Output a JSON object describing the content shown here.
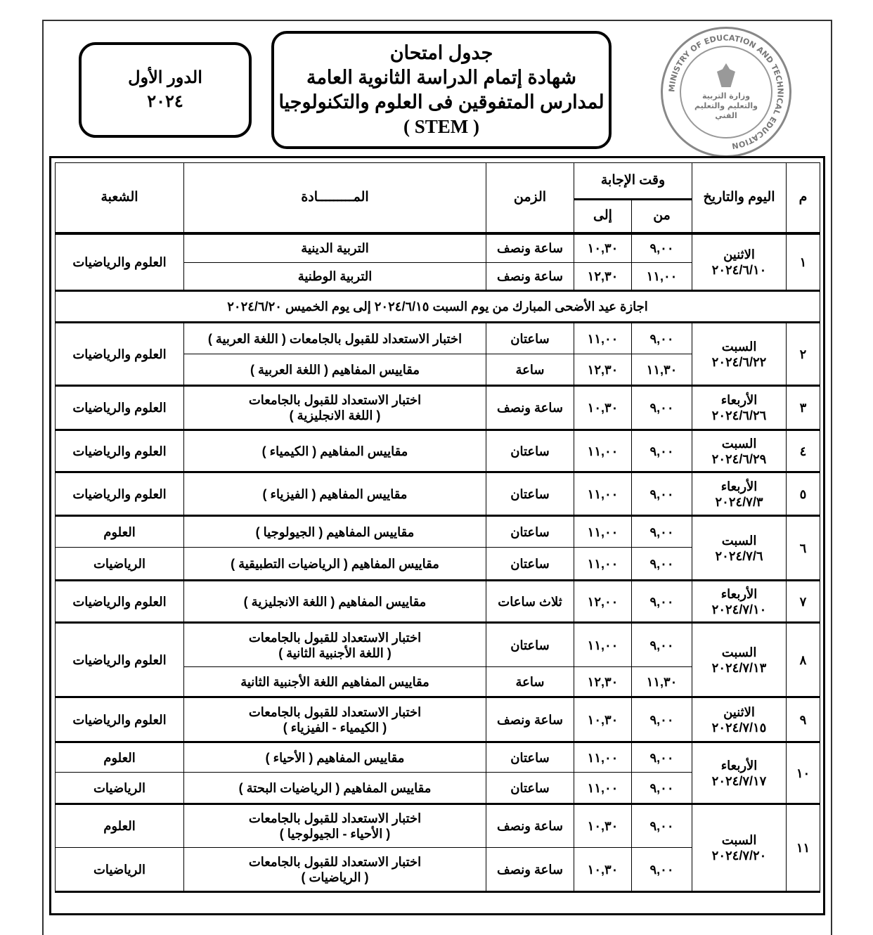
{
  "logo": {
    "arabic_text": "وزارة التربية والتعليم والتعليم الفني",
    "ring_text": "MINISTRY OF EDUCATION AND TECHNICAL EDUCATION"
  },
  "title": {
    "line1": "جدول امتحان",
    "line2": "شهادة إتمام الدراسة الثانوية العامة",
    "line3": "لمدارس المتفوقين فى العلوم والتكنولوجيا",
    "line4": "( STEM )"
  },
  "session": {
    "label": "الدور الأول",
    "year": "٢٠٢٤"
  },
  "table": {
    "headers": {
      "num": "م",
      "day_date": "اليوم والتاريخ",
      "answer_time": "وقت الإجابة",
      "from": "من",
      "to": "إلى",
      "duration": "الزمن",
      "subject": "المـــــــــادة",
      "division": "الشعبة"
    },
    "holiday": "اجازة عيد الأضحى المبارك من يوم السبت ٢٠٢٤/٦/١٥ إلى يوم الخميس ٢٠٢٤/٦/٢٠",
    "groups": [
      {
        "num": "١",
        "day": "الاثنين",
        "date": "٢٠٢٤/٦/١٠",
        "division_merged": "العلوم والرياضيات",
        "rows": [
          {
            "from": "٩,٠٠",
            "to": "١٠,٣٠",
            "duration": "ساعة ونصف",
            "subject": "التربية الدينية"
          },
          {
            "from": "١١,٠٠",
            "to": "١٢,٣٠",
            "duration": "ساعة ونصف",
            "subject": "التربية الوطنية"
          }
        ]
      },
      {
        "num": "٢",
        "day": "السبت",
        "date": "٢٠٢٤/٦/٢٢",
        "division_merged": "العلوم والرياضيات",
        "rows": [
          {
            "from": "٩,٠٠",
            "to": "١١,٠٠",
            "duration": "ساعتان",
            "subject": "اختبار الاستعداد للقبول بالجامعات ( اللغة العربية )"
          },
          {
            "from": "١١,٣٠",
            "to": "١٢,٣٠",
            "duration": "ساعة",
            "subject": "مقاييس المفاهيم ( اللغة العربية )"
          }
        ]
      },
      {
        "num": "٣",
        "day": "الأربعاء",
        "date": "٢٠٢٤/٦/٢٦",
        "division_merged": "العلوم والرياضيات",
        "rows": [
          {
            "from": "٩,٠٠",
            "to": "١٠,٣٠",
            "duration": "ساعة ونصف",
            "subject": "اختبار الاستعداد للقبول بالجامعات",
            "subject2": "( اللغة الانجليزية )"
          }
        ]
      },
      {
        "num": "٤",
        "day": "السبت",
        "date": "٢٠٢٤/٦/٢٩",
        "division_merged": "العلوم والرياضيات",
        "rows": [
          {
            "from": "٩,٠٠",
            "to": "١١,٠٠",
            "duration": "ساعتان",
            "subject": "مقاييس المفاهيم ( الكيمياء )"
          }
        ]
      },
      {
        "num": "٥",
        "day": "الأربعاء",
        "date": "٢٠٢٤/٧/٣",
        "division_merged": "العلوم والرياضيات",
        "rows": [
          {
            "from": "٩,٠٠",
            "to": "١١,٠٠",
            "duration": "ساعتان",
            "subject": "مقاييس المفاهيم ( الفيزياء )"
          }
        ]
      },
      {
        "num": "٦",
        "day": "السبت",
        "date": "٢٠٢٤/٧/٦",
        "rows": [
          {
            "from": "٩,٠٠",
            "to": "١١,٠٠",
            "duration": "ساعتان",
            "subject": "مقاييس المفاهيم ( الجيولوجيا )",
            "division": "العلوم"
          },
          {
            "from": "٩,٠٠",
            "to": "١١,٠٠",
            "duration": "ساعتان",
            "subject": "مقاييس المفاهيم ( الرياضيات التطبيقية )",
            "division": "الرياضيات"
          }
        ]
      },
      {
        "num": "٧",
        "day": "الأربعاء",
        "date": "٢٠٢٤/٧/١٠",
        "division_merged": "العلوم والرياضيات",
        "rows": [
          {
            "from": "٩,٠٠",
            "to": "١٢,٠٠",
            "duration": "ثلاث ساعات",
            "subject": "مقاييس المفاهيم ( اللغة الانجليزية )"
          }
        ]
      },
      {
        "num": "٨",
        "day": "السبت",
        "date": "٢٠٢٤/٧/١٣",
        "division_merged": "العلوم والرياضيات",
        "rows": [
          {
            "from": "٩,٠٠",
            "to": "١١,٠٠",
            "duration": "ساعتان",
            "subject": "اختبار الاستعداد للقبول بالجامعات",
            "subject2": "( اللغة الأجنبية الثانية )"
          },
          {
            "from": "١١,٣٠",
            "to": "١٢,٣٠",
            "duration": "ساعة",
            "subject": "مقاييس المفاهيم اللغة الأجنبية الثانية"
          }
        ]
      },
      {
        "num": "٩",
        "day": "الاثنين",
        "date": "٢٠٢٤/٧/١٥",
        "division_merged": "العلوم والرياضيات",
        "rows": [
          {
            "from": "٩,٠٠",
            "to": "١٠,٣٠",
            "duration": "ساعة ونصف",
            "subject": "اختبار الاستعداد للقبول بالجامعات",
            "subject2": "( الكيمياء - الفيزياء )"
          }
        ]
      },
      {
        "num": "١٠",
        "day": "الأربعاء",
        "date": "٢٠٢٤/٧/١٧",
        "rows": [
          {
            "from": "٩,٠٠",
            "to": "١١,٠٠",
            "duration": "ساعتان",
            "subject": "مقاييس المفاهيم ( الأحياء )",
            "division": "العلوم"
          },
          {
            "from": "٩,٠٠",
            "to": "١١,٠٠",
            "duration": "ساعتان",
            "subject": "مقاييس المفاهيم ( الرياضيات البحتة )",
            "division": "الرياضيات"
          }
        ]
      },
      {
        "num": "١١",
        "day": "السبت",
        "date": "٢٠٢٤/٧/٢٠",
        "rows": [
          {
            "from": "٩,٠٠",
            "to": "١٠,٣٠",
            "duration": "ساعة ونصف",
            "subject": "اختبار الاستعداد للقبول بالجامعات",
            "subject2": "( الأحياء - الجيولوجيا )",
            "division": "العلوم"
          },
          {
            "from": "٩,٠٠",
            "to": "١٠,٣٠",
            "duration": "ساعة ونصف",
            "subject": "اختبار الاستعداد للقبول بالجامعات",
            "subject2": "( الرياضيات )",
            "division": "الرياضيات"
          }
        ]
      }
    ]
  }
}
